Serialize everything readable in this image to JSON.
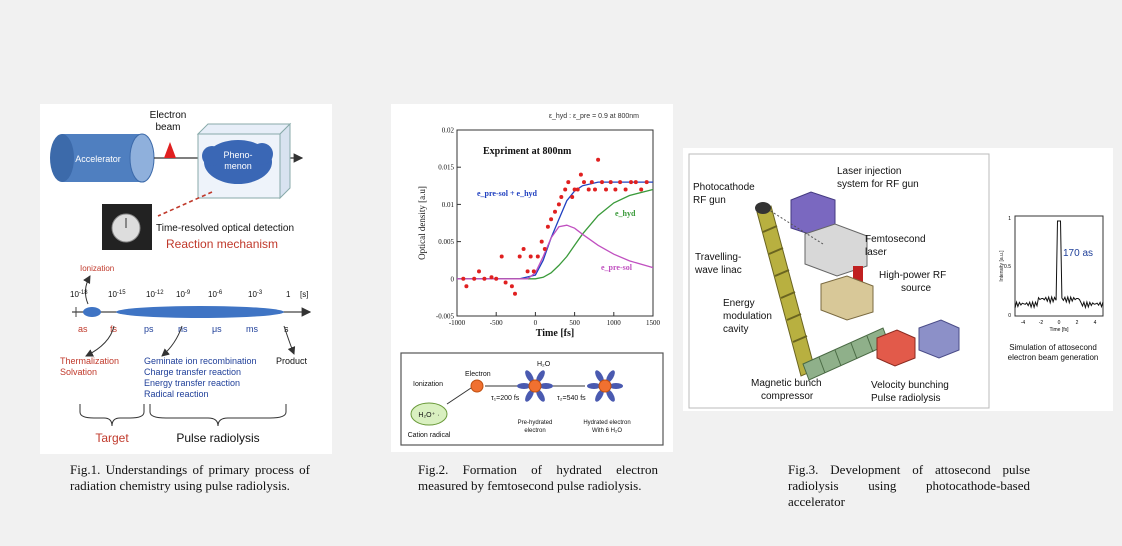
{
  "fig1": {
    "accelerator": "Accelerator",
    "electron_beam_line1": "Electron",
    "electron_beam_line2": "beam",
    "phenomenon_line1": "Pheno-",
    "phenomenon_line2": "menon",
    "detection": "Time-resolved optical detection",
    "reaction_mechanism": "Reaction mechanism",
    "ionization": "Ionization",
    "timescale_units": [
      "as",
      "fs",
      "ps",
      "ns",
      "μs",
      "ms",
      "s"
    ],
    "exponents": [
      "-18",
      "-15",
      "-12",
      "-9",
      "-6",
      "-3"
    ],
    "one_label": "1",
    "seconds_label": "[s]",
    "thermalization": "Thermalization",
    "solvation": "Solvation",
    "reactions": [
      "Geminate ion recombination",
      "Charge transfer reaction",
      "Energy transfer reaction",
      "Radical reaction"
    ],
    "product": "Product",
    "target": "Target",
    "pulse_radiolysis": "Pulse radiolysis",
    "colors": {
      "accelerator": "#4f7fc0",
      "cloud": "#3a67b5",
      "beam": "#e02020",
      "ellipse": "#3f74c4",
      "red_text": "#c0392b",
      "blue_text": "#1f3f99"
    }
  },
  "fig2": {
    "ratio_note": "ε_hyd : ε_pre = 0.9 at 800nm",
    "experiment_label": "Expriment at 800nm",
    "legend_sum": "e_pre-sol + e_hyd",
    "label_hyd": "e_hyd",
    "label_pre": "e_pre-sol",
    "chart_data": {
      "type": "scatter",
      "xlabel": "Time [fs]",
      "ylabel": "Optical density [a.u]",
      "xlim": [
        -1000,
        1500
      ],
      "ylim": [
        -0.005,
        0.02
      ],
      "xticks": [
        "-1000",
        "-500",
        "0",
        "500",
        "1000",
        "1500"
      ],
      "yticks": [
        "-0.005",
        "0",
        "0.005",
        "0.01",
        "0.015",
        "0.02"
      ],
      "points": [
        [
          -920,
          0.0
        ],
        [
          -880,
          -0.001
        ],
        [
          -780,
          0.0
        ],
        [
          -720,
          0.001
        ],
        [
          -650,
          0.0
        ],
        [
          -560,
          0.0002
        ],
        [
          -500,
          0.0
        ],
        [
          -430,
          0.003
        ],
        [
          -380,
          -0.0005
        ],
        [
          -300,
          -0.001
        ],
        [
          -260,
          -0.002
        ],
        [
          -200,
          0.003
        ],
        [
          -150,
          0.004
        ],
        [
          -100,
          0.001
        ],
        [
          -60,
          0.003
        ],
        [
          -20,
          0.001
        ],
        [
          30,
          0.003
        ],
        [
          80,
          0.005
        ],
        [
          120,
          0.004
        ],
        [
          160,
          0.007
        ],
        [
          200,
          0.008
        ],
        [
          250,
          0.009
        ],
        [
          300,
          0.01
        ],
        [
          330,
          0.011
        ],
        [
          380,
          0.012
        ],
        [
          420,
          0.013
        ],
        [
          470,
          0.011
        ],
        [
          500,
          0.012
        ],
        [
          540,
          0.012
        ],
        [
          580,
          0.014
        ],
        [
          620,
          0.013
        ],
        [
          680,
          0.012
        ],
        [
          720,
          0.013
        ],
        [
          760,
          0.012
        ],
        [
          800,
          0.016
        ],
        [
          850,
          0.013
        ],
        [
          900,
          0.012
        ],
        [
          960,
          0.013
        ],
        [
          1020,
          0.012
        ],
        [
          1080,
          0.013
        ],
        [
          1150,
          0.012
        ],
        [
          1220,
          0.013
        ],
        [
          1280,
          0.013
        ],
        [
          1350,
          0.012
        ],
        [
          1420,
          0.013
        ]
      ],
      "series": [
        {
          "name": "e_pre-sol + e_hyd",
          "color": "#2040c0",
          "x": [
            -1000,
            -200,
            0,
            100,
            200,
            300,
            400,
            500,
            600,
            800,
            1000,
            1200,
            1500
          ],
          "y": [
            0,
            0,
            0.0005,
            0.0025,
            0.0055,
            0.008,
            0.0105,
            0.0118,
            0.0125,
            0.013,
            0.013,
            0.013,
            0.013
          ]
        },
        {
          "name": "e_hyd",
          "color": "#3a9a3a",
          "x": [
            -1000,
            0,
            100,
            200,
            300,
            400,
            500,
            600,
            800,
            1000,
            1200,
            1500
          ],
          "y": [
            0,
            0,
            0.0002,
            0.0008,
            0.0018,
            0.003,
            0.0045,
            0.006,
            0.0085,
            0.0102,
            0.0112,
            0.012
          ]
        },
        {
          "name": "e_pre-sol",
          "color": "#c050c0",
          "x": [
            -1000,
            -100,
            0,
            100,
            200,
            300,
            400,
            500,
            600,
            800,
            1000,
            1200,
            1500
          ],
          "y": [
            0,
            0,
            0.0008,
            0.003,
            0.0055,
            0.007,
            0.0072,
            0.0068,
            0.006,
            0.0045,
            0.0033,
            0.0024,
            0.0015
          ]
        }
      ]
    },
    "scheme": {
      "ionization": "Ionization",
      "electron": "Electron",
      "h2o_plus": "H₂O⁺ ·",
      "cation_radical": "Cation radical",
      "h2o": "H₂O",
      "tau1": "τ₁=200 fs",
      "tau2": "τ₂=540 fs",
      "pre_hydrated_line1": "Pre-hydrated",
      "pre_hydrated_line2": "electron",
      "hydrated_line1": "Hydrated electron",
      "hydrated_line2": "With 6 H₂O"
    }
  },
  "fig3": {
    "laser_injection_line1": "Laser injection",
    "laser_injection_line2": "system for RF gun",
    "photocathode_line1": "Photocathode",
    "photocathode_line2": "RF gun",
    "femtosecond_line1": "Femtosecond",
    "femtosecond_line2": "laser",
    "travelling_line1": "Travelling-",
    "travelling_line2": "wave linac",
    "rf_source_line1": "High-power RF",
    "rf_source_line2": "source",
    "energy_line1": "Energy",
    "energy_line2": "modulation",
    "energy_line3": "cavity",
    "magnetic_line1": "Magnetic bunch",
    "magnetic_line2": "compressor",
    "velocity_line1": "Velocity bunching",
    "velocity_line2": "Pulse radiolysis",
    "sim_peak_label": "170 as",
    "sim_ylabel": "Intensity [a.u.]",
    "sim_xlabel": "Time [fs]",
    "sim_xticks": [
      "-4",
      "-2",
      "0",
      "2",
      "4"
    ],
    "sim_yticks": [
      "0",
      "0.5",
      "1"
    ],
    "sim_caption_line1": "Simulation of attosecond",
    "sim_caption_line2": "electron beam generation"
  },
  "captions": {
    "fig1": "Fig.1. Understandings of primary process of radiation chemistry using pulse radiolysis.",
    "fig2": "Fig.2. Formation of hydrated electron measured by femtosecond pulse radiolysis.",
    "fig3": "Fig.3. Development of attosecond pulse radiolysis using photocathode-based accelerator"
  }
}
